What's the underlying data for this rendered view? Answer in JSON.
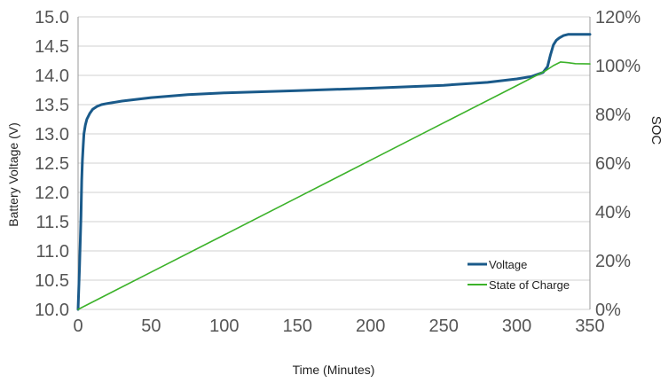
{
  "chart_data": {
    "type": "line",
    "xlabel": "Time (Minutes)",
    "ylabel": "Battery Voltage (V)",
    "y2label": "SOC",
    "xlim": [
      0,
      350
    ],
    "ylim": [
      10.0,
      15.0
    ],
    "y2lim": [
      0,
      120
    ],
    "x_ticks": [
      "0",
      "50",
      "100",
      "150",
      "200",
      "250",
      "300",
      "350"
    ],
    "y_ticks": [
      "10.0",
      "10.5",
      "11.0",
      "11.5",
      "12.0",
      "12.5",
      "13.0",
      "13.5",
      "14.0",
      "14.5",
      "15.0"
    ],
    "y2_ticks": [
      "0%",
      "20%",
      "40%",
      "60%",
      "80%",
      "100%",
      "120%"
    ],
    "grid": "horizontal",
    "legend_position": "bottom-right",
    "colors": {
      "voltage": "#1a5a8a",
      "soc": "#3cb22a",
      "grid": "#d0d0d0"
    },
    "series": [
      {
        "name": "Voltage",
        "axis": "left",
        "x": [
          0,
          1,
          2,
          2.5,
          3,
          3.5,
          4,
          5,
          6,
          8,
          10,
          13,
          16,
          20,
          30,
          50,
          75,
          100,
          150,
          200,
          250,
          280,
          300,
          310,
          318,
          321,
          323,
          325,
          327,
          329,
          332,
          335,
          340,
          345,
          350
        ],
        "y": [
          10.0,
          10.7,
          11.6,
          12.2,
          12.55,
          12.8,
          13.0,
          13.15,
          13.25,
          13.35,
          13.42,
          13.47,
          13.5,
          13.52,
          13.56,
          13.62,
          13.67,
          13.7,
          13.74,
          13.78,
          13.83,
          13.88,
          13.94,
          13.98,
          14.05,
          14.15,
          14.35,
          14.52,
          14.6,
          14.64,
          14.68,
          14.7,
          14.7,
          14.7,
          14.7
        ]
      },
      {
        "name": "State of Charge",
        "axis": "right",
        "x": [
          0,
          50,
          100,
          150,
          200,
          250,
          300,
          320,
          325,
          330,
          335,
          340,
          350
        ],
        "y": [
          0,
          15.3,
          30.6,
          45.9,
          61.2,
          76.5,
          91.8,
          98.0,
          100.0,
          101.5,
          101.2,
          100.8,
          100.7
        ]
      }
    ]
  }
}
